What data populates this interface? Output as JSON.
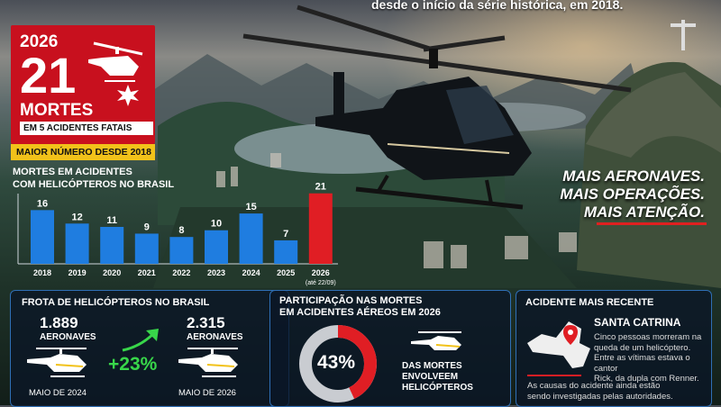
{
  "header": {
    "top_text": "desde o início da série histórica, em 2018."
  },
  "hero": {
    "year": "2026",
    "deaths_number": "21",
    "deaths_label": "MORTES",
    "fatal_accidents": "EM 5 ACIDENTES FATAIS",
    "highlight": "MAIOR NÚMERO DESDE 2018"
  },
  "slogan": {
    "line1": "MAIS AERONAVES.",
    "line2": "MAIS OPERAÇÕES.",
    "line3": "MAIS ATENÇÃO."
  },
  "chart_data": {
    "type": "bar",
    "title": "MORTES EM ACIDENTES COM HELICÓPTEROS NO BRASIL",
    "title_line1": "MORTES EM ACIDENTES",
    "title_line2": "COM HELICÓPTEROS NO BRASIL",
    "categories": [
      "2018",
      "2019",
      "2020",
      "2021",
      "2022",
      "2023",
      "2024",
      "2025",
      "2026"
    ],
    "sublabels": [
      "",
      "",
      "",
      "",
      "",
      "",
      "",
      "",
      "(até 22/09)"
    ],
    "values": [
      16,
      12,
      11,
      9,
      8,
      10,
      15,
      7,
      21
    ],
    "ylim": [
      0,
      22
    ],
    "grid": false,
    "bar_color": "#1f7de0",
    "highlight_color": "#e01e24",
    "highlight_index": 8
  },
  "fleet": {
    "title": "FROTA DE HELICÓPTEROS NO BRASIL",
    "before_value": "1.889",
    "before_label": "AERONAVES",
    "before_date": "MAIO DE 2024",
    "after_value": "2.315",
    "after_label": "AERONAVES",
    "after_date": "MAIO DE 2026",
    "growth": "+23%",
    "growth_color": "#38d64a"
  },
  "share": {
    "title_line1": "PARTICIPAÇÃO NAS MORTES",
    "title_line2": "EM ACIDENTES AÉREOS EM 2026",
    "percent_label": "43%",
    "percent": 43,
    "caption_line1": "DAS MORTES",
    "caption_line2": "ENVOLVEEM",
    "caption_line3": "HELICÓPTEROS"
  },
  "recent": {
    "title": "ACIDENTE MAIS RECENTE",
    "state": "SANTA CATRINA",
    "desc": [
      "Cinco pessoas morreram na",
      "queda de um helicóptero.",
      "Entre as vítimas estava o cantor",
      "Rick, da dupla com Renner."
    ],
    "footer": [
      "As causas do acidente ainda estão",
      "sendo investigadas pelas autoridades."
    ]
  },
  "colors": {
    "red": "#c8101e",
    "yellow": "#f2c21a",
    "panel_border": "#2f6fb5"
  },
  "icons": [
    "helicopter-icon",
    "crash-star-icon",
    "trend-arrow-icon",
    "map-pin-icon"
  ]
}
